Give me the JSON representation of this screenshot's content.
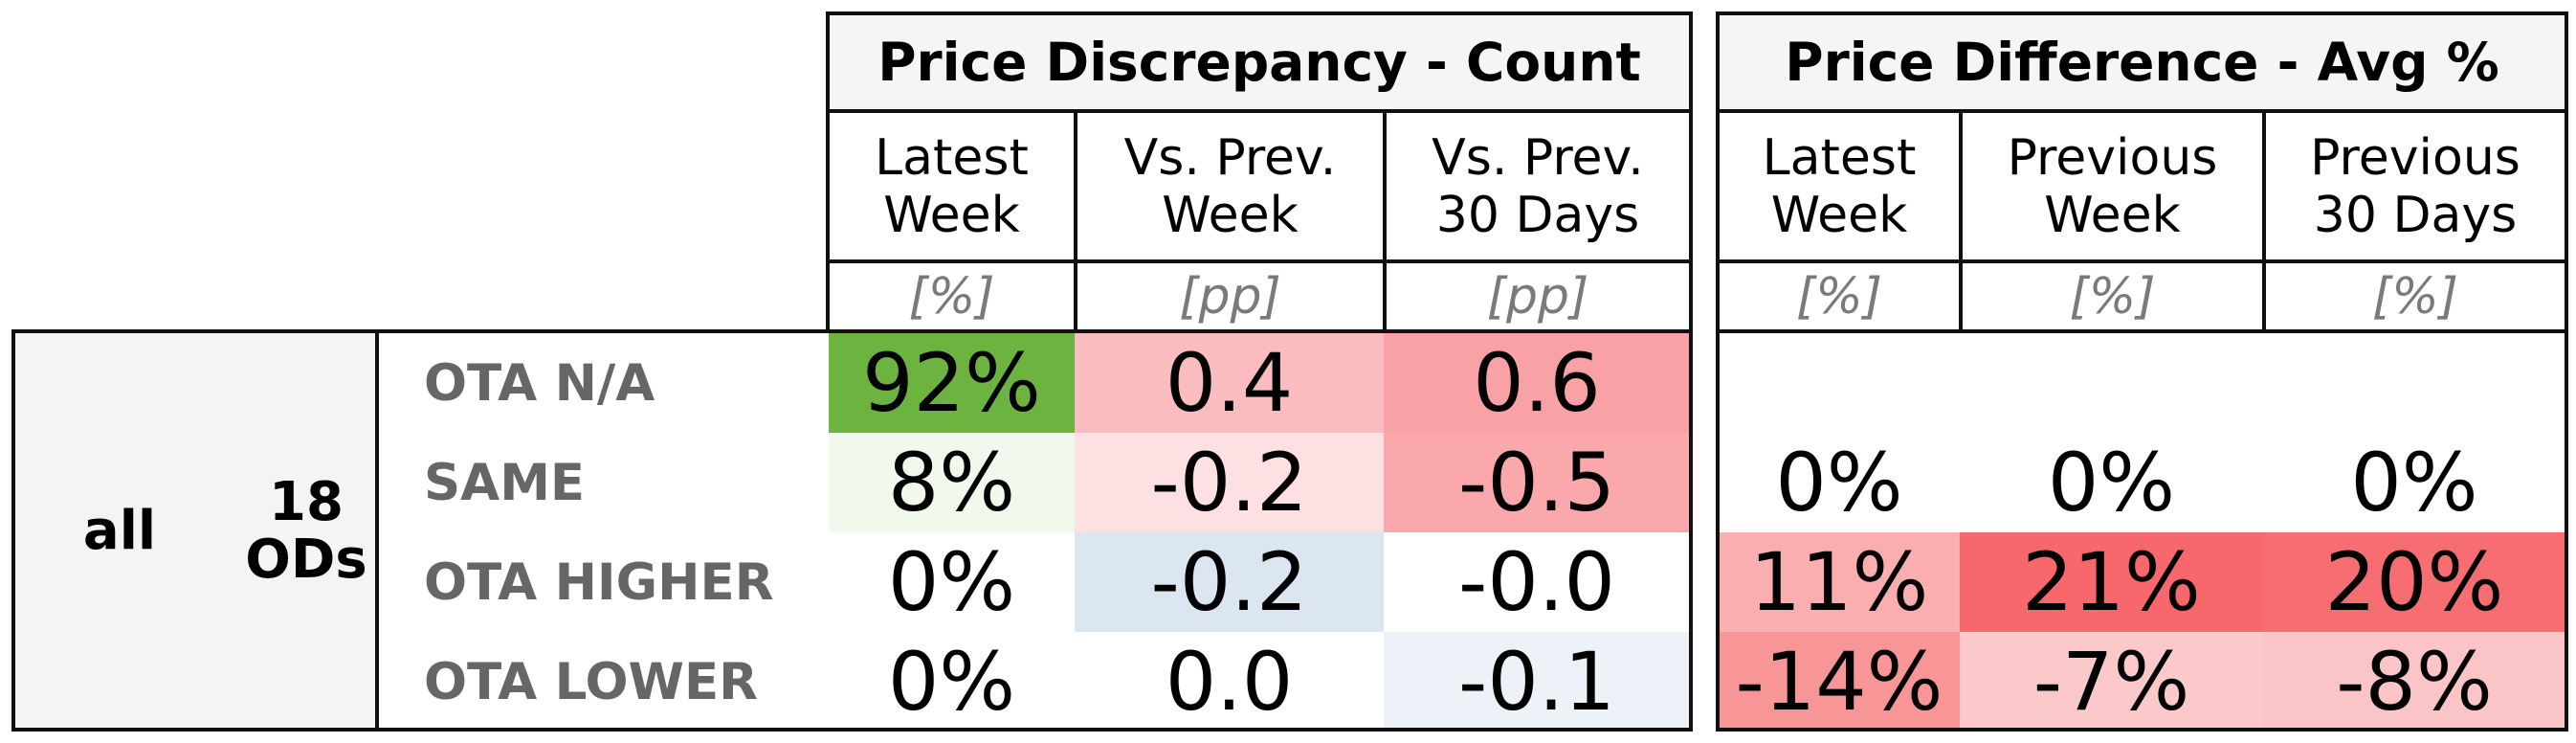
{
  "groups": {
    "count": {
      "title": "Price Discrepancy - Count",
      "columns": [
        {
          "header_lines": [
            "Latest",
            "Week"
          ],
          "unit": "[%]"
        },
        {
          "header_lines": [
            "Vs. Prev.",
            "Week"
          ],
          "unit": "[pp]"
        },
        {
          "header_lines": [
            "Vs. Prev.",
            "30 Days"
          ],
          "unit": "[pp]"
        }
      ]
    },
    "avg": {
      "title": "Price Difference - Avg %",
      "columns": [
        {
          "header_lines": [
            "Latest",
            "Week"
          ],
          "unit": "[%]"
        },
        {
          "header_lines": [
            "Previous",
            "Week"
          ],
          "unit": "[%]"
        },
        {
          "header_lines": [
            "Previous",
            "30 Days"
          ],
          "unit": "[%]"
        }
      ]
    }
  },
  "stub": {
    "segment": "all",
    "od_count_lines": [
      "18",
      "ODs"
    ]
  },
  "rows": [
    {
      "label": "OTA N/A",
      "count": [
        {
          "value": "92%",
          "color": "#6db33f"
        },
        {
          "value": "0.4",
          "color": "#fbbcbf"
        },
        {
          "value": "0.6",
          "color": "#f9a2a5"
        }
      ],
      "avg": [
        {
          "value": "",
          "color": "#ffffff"
        },
        {
          "value": "",
          "color": "#ffffff"
        },
        {
          "value": "",
          "color": "#ffffff"
        }
      ]
    },
    {
      "label": "SAME",
      "count": [
        {
          "value": "8%",
          "color": "#f1f8ec"
        },
        {
          "value": "-0.2",
          "color": "#fde0e2"
        },
        {
          "value": "-0.5",
          "color": "#faa8ab"
        }
      ],
      "avg": [
        {
          "value": "0%",
          "color": "#ffffff"
        },
        {
          "value": "0%",
          "color": "#ffffff"
        },
        {
          "value": "0%",
          "color": "#ffffff"
        }
      ]
    },
    {
      "label": "OTA HIGHER",
      "count": [
        {
          "value": "0%",
          "color": "#ffffff"
        },
        {
          "value": "-0.2",
          "color": "#dce6f1"
        },
        {
          "value": "-0.0",
          "color": "#ffffff"
        }
      ],
      "avg": [
        {
          "value": "11%",
          "color": "#faaeb0"
        },
        {
          "value": "21%",
          "color": "#f7686d"
        },
        {
          "value": "20%",
          "color": "#f76e72"
        }
      ]
    },
    {
      "label": "OTA LOWER",
      "count": [
        {
          "value": "0%",
          "color": "#ffffff"
        },
        {
          "value": "0.0",
          "color": "#ffffff"
        },
        {
          "value": "-0.1",
          "color": "#edf2f8"
        }
      ],
      "avg": [
        {
          "value": "-14%",
          "color": "#f79597"
        },
        {
          "value": "-7%",
          "color": "#fcc9cb"
        },
        {
          "value": "-8%",
          "color": "#fbc4c6"
        }
      ]
    }
  ]
}
